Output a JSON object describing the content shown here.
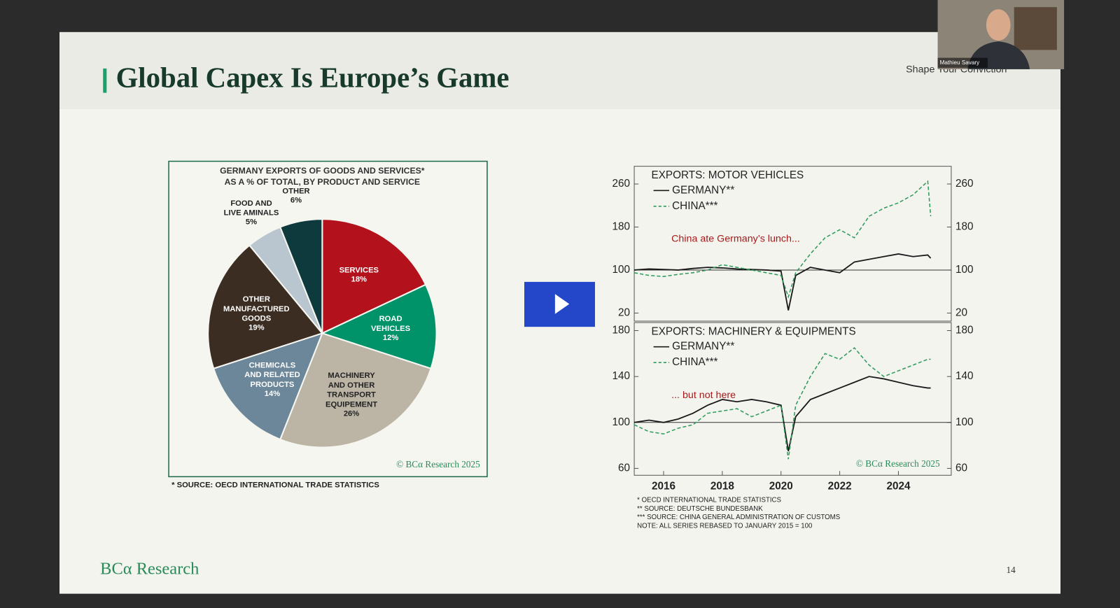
{
  "slide": {
    "title": "Global Capex Is Europe’s Game",
    "tagline": "Shape Your Conviction",
    "presenter": "Mathieu Savary",
    "footer_logo": "BCα Research",
    "page_number": "14",
    "pie_note": "* SOURCE: OECD INTERNATIONAL TRADE STATISTICS",
    "line_notes": [
      "* OECD INTERNATIONAL TRADE STATISTICS",
      "** SOURCE: DEUTSCHE BUNDESBANK",
      "*** SOURCE: CHINA GENERAL ADMINISTRATION OF CUSTOMS",
      "NOTE: ALL SERIES REBASED TO JANUARY 2015 = 100"
    ]
  },
  "chart_data": [
    {
      "type": "pie",
      "title": "GERMANY EXPORTS OF GOODS AND SERVICES*\nAS A % OF TOTAL, BY PRODUCT AND SERVICE",
      "categories": [
        "SERVICES",
        "ROAD\nVEHICLES",
        "MACHINERY\nAND OTHER\nTRANSPORT\nEQUIPEMENT",
        "CHEMICALS\nAND RELATED\nPRODUCTS",
        "OTHER\nMANUFACTURED\nGOODS",
        "FOOD AND\nLIVE AMINALS",
        "OTHER"
      ],
      "values": [
        18,
        12,
        26,
        14,
        19,
        5,
        6
      ],
      "value_labels": [
        "18%",
        "12%",
        "26%",
        "14%",
        "19%",
        "5%",
        "6%"
      ],
      "colors": [
        "#b3121c",
        "#00936a",
        "#bcb5a6",
        "#6c8799",
        "#3b2d22",
        "#b9c6cf",
        "#0e3a3e"
      ],
      "copyright": "© BCα Research 2025"
    },
    {
      "type": "line",
      "title": "EXPORTS: MOTOR VEHICLES",
      "annotation": "China ate Germany’s lunch...",
      "x": [
        2015,
        2015.5,
        2016,
        2016.5,
        2017,
        2017.5,
        2018,
        2018.5,
        2019,
        2019.5,
        2020,
        2020.25,
        2020.5,
        2021,
        2021.5,
        2022,
        2022.5,
        2023,
        2023.5,
        2024,
        2024.5,
        2025,
        2025.1
      ],
      "series": [
        {
          "name": "GERMANY**",
          "color": "#1a1a1a",
          "dashed": false,
          "values": [
            100,
            102,
            101,
            100,
            103,
            105,
            104,
            102,
            101,
            100,
            98,
            25,
            90,
            105,
            100,
            95,
            115,
            120,
            125,
            130,
            125,
            128,
            122
          ]
        },
        {
          "name": "CHINA***",
          "color": "#2e9a5c",
          "dashed": true,
          "values": [
            95,
            90,
            88,
            92,
            95,
            100,
            110,
            105,
            100,
            95,
            90,
            50,
            95,
            130,
            160,
            175,
            160,
            200,
            215,
            225,
            240,
            265,
            200
          ]
        }
      ],
      "xlim": [
        2015,
        2025.8
      ],
      "ylim": [
        5,
        293
      ],
      "yticks": [
        20,
        100,
        180,
        260
      ],
      "reference_line": 100
    },
    {
      "type": "line",
      "title": "EXPORTS: MACHINERY & EQUIPMENTS",
      "annotation": "... but not here",
      "copyright": "© BCα Research 2025",
      "x": [
        2015,
        2015.5,
        2016,
        2016.5,
        2017,
        2017.5,
        2018,
        2018.5,
        2019,
        2019.5,
        2020,
        2020.25,
        2020.5,
        2021,
        2021.5,
        2022,
        2022.5,
        2023,
        2023.5,
        2024,
        2024.5,
        2025,
        2025.1
      ],
      "series": [
        {
          "name": "GERMANY**",
          "color": "#1a1a1a",
          "dashed": false,
          "values": [
            100,
            102,
            100,
            103,
            108,
            115,
            120,
            118,
            120,
            118,
            115,
            75,
            105,
            120,
            125,
            130,
            135,
            140,
            138,
            135,
            132,
            130,
            130
          ]
        },
        {
          "name": "CHINA***",
          "color": "#2e9a5c",
          "dashed": true,
          "values": [
            98,
            92,
            90,
            95,
            98,
            108,
            110,
            112,
            105,
            110,
            115,
            68,
            115,
            140,
            160,
            155,
            165,
            150,
            140,
            145,
            150,
            155,
            155
          ]
        }
      ],
      "xlim": [
        2015,
        2025.8
      ],
      "ylim": [
        54,
        187
      ],
      "xticks": [
        2016,
        2018,
        2020,
        2022,
        2024
      ],
      "yticks": [
        60,
        100,
        140,
        180
      ],
      "reference_line": 100
    }
  ]
}
